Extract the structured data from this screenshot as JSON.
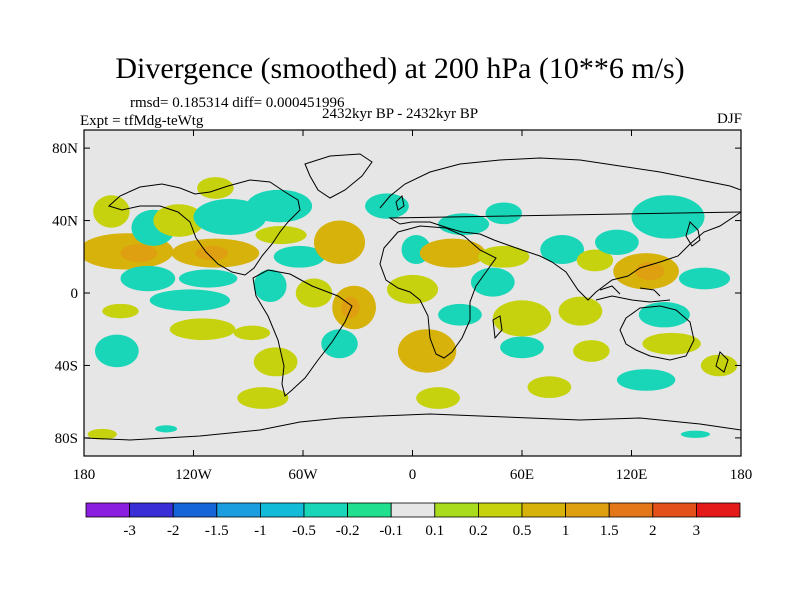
{
  "chart_data": {
    "type": "heatmap",
    "title": "Divergence (smoothed) at 200 hPa (10**6 m/s)",
    "stats_text": "rmsd= 0.185314 diff= 0.000451996",
    "experiment_label": "Expt = tfMdg-teWtg",
    "period_label": "2432kyr BP - 2432kyr BP",
    "season_label": "DJF",
    "xlim": [
      -180,
      180
    ],
    "ylim": [
      -90,
      90
    ],
    "x_ticks": [
      {
        "value": -180,
        "label": "180"
      },
      {
        "value": -120,
        "label": "120W"
      },
      {
        "value": -60,
        "label": "60W"
      },
      {
        "value": 0,
        "label": "0"
      },
      {
        "value": 60,
        "label": "60E"
      },
      {
        "value": 120,
        "label": "120E"
      },
      {
        "value": 180,
        "label": "180"
      }
    ],
    "y_ticks": [
      {
        "value": 80,
        "label": "80N"
      },
      {
        "value": 40,
        "label": "40N"
      },
      {
        "value": 0,
        "label": "0"
      },
      {
        "value": -40,
        "label": "40S"
      },
      {
        "value": -80,
        "label": "80S"
      }
    ],
    "colorbar": {
      "colors": [
        "#8a1fe0",
        "#3a2fd6",
        "#1565d8",
        "#1a9ee0",
        "#12bcd8",
        "#1ad6b8",
        "#20e090",
        "#e6e6e6",
        "#a8dc1c",
        "#c6d20e",
        "#d6b20a",
        "#dea010",
        "#e47818",
        "#e4501a",
        "#e41a1a"
      ],
      "labels": [
        "-3",
        "-2",
        "-1.5",
        "-1",
        "-0.5",
        "-0.2",
        "-0.1",
        "0.1",
        "0.2",
        "0.5",
        "1",
        "1.5",
        "2",
        "3"
      ]
    },
    "regions": [
      {
        "lon": -165,
        "lat": 45,
        "rlon": 10,
        "rlat": 9,
        "value": 0.3
      },
      {
        "lon": -157,
        "lat": 23,
        "rlon": 26,
        "rlat": 10,
        "value": 0.6
      },
      {
        "lon": -150,
        "lat": 22,
        "rlon": 10,
        "rlat": 5,
        "value": 1.1
      },
      {
        "lon": -160,
        "lat": -10,
        "rlon": 10,
        "rlat": 4,
        "value": 0.3
      },
      {
        "lon": -162,
        "lat": -32,
        "rlon": 12,
        "rlat": 9,
        "value": -0.3
      },
      {
        "lon": -145,
        "lat": 8,
        "rlon": 15,
        "rlat": 7,
        "value": -0.35
      },
      {
        "lon": -142,
        "lat": 36,
        "rlon": 12,
        "rlat": 10,
        "value": -0.3
      },
      {
        "lon": -128,
        "lat": 40,
        "rlon": 14,
        "rlat": 9,
        "value": 0.3
      },
      {
        "lon": -108,
        "lat": 58,
        "rlon": 10,
        "rlat": 6,
        "value": 0.3
      },
      {
        "lon": -100,
        "lat": 42,
        "rlon": 20,
        "rlat": 10,
        "value": -0.3
      },
      {
        "lon": -108,
        "lat": 22,
        "rlon": 24,
        "rlat": 8,
        "value": 0.6
      },
      {
        "lon": -110,
        "lat": 22,
        "rlon": 9,
        "rlat": 4,
        "value": 1.1
      },
      {
        "lon": -112,
        "lat": 8,
        "rlon": 16,
        "rlat": 5,
        "value": -0.3
      },
      {
        "lon": -122,
        "lat": -4,
        "rlon": 22,
        "rlat": 6,
        "value": -0.3
      },
      {
        "lon": -115,
        "lat": -20,
        "rlon": 18,
        "rlat": 6,
        "value": 0.3
      },
      {
        "lon": -73,
        "lat": 48,
        "rlon": 18,
        "rlat": 9,
        "value": -0.35
      },
      {
        "lon": -72,
        "lat": 32,
        "rlon": 14,
        "rlat": 5,
        "value": 0.3
      },
      {
        "lon": -78,
        "lat": 4,
        "rlon": 9,
        "rlat": 9,
        "value": -0.4
      },
      {
        "lon": -88,
        "lat": -22,
        "rlon": 10,
        "rlat": 4,
        "value": 0.3
      },
      {
        "lon": -75,
        "lat": -38,
        "rlon": 12,
        "rlat": 8,
        "value": 0.3
      },
      {
        "lon": -82,
        "lat": -58,
        "rlon": 14,
        "rlat": 6,
        "value": 0.4
      },
      {
        "lon": -62,
        "lat": 20,
        "rlon": 14,
        "rlat": 6,
        "value": -0.3
      },
      {
        "lon": -54,
        "lat": 0,
        "rlon": 10,
        "rlat": 8,
        "value": 0.3
      },
      {
        "lon": -40,
        "lat": 28,
        "rlon": 14,
        "rlat": 12,
        "value": 0.6
      },
      {
        "lon": -32,
        "lat": -8,
        "rlon": 12,
        "rlat": 12,
        "value": 0.6
      },
      {
        "lon": -34,
        "lat": -8,
        "rlon": 5,
        "rlat": 6,
        "value": 1.1
      },
      {
        "lon": -40,
        "lat": -28,
        "rlon": 10,
        "rlat": 8,
        "value": -0.3
      },
      {
        "lon": -14,
        "lat": 48,
        "rlon": 12,
        "rlat": 7,
        "value": -0.3
      },
      {
        "lon": 2,
        "lat": 24,
        "rlon": 8,
        "rlat": 8,
        "value": -0.3
      },
      {
        "lon": 28,
        "lat": 38,
        "rlon": 14,
        "rlat": 6,
        "value": -0.3
      },
      {
        "lon": 22,
        "lat": 22,
        "rlon": 18,
        "rlat": 8,
        "value": 0.5
      },
      {
        "lon": 0,
        "lat": 2,
        "rlon": 14,
        "rlat": 8,
        "value": 0.3
      },
      {
        "lon": 8,
        "lat": -32,
        "rlon": 16,
        "rlat": 12,
        "value": 0.5
      },
      {
        "lon": 26,
        "lat": -12,
        "rlon": 12,
        "rlat": 6,
        "value": -0.3
      },
      {
        "lon": 14,
        "lat": -58,
        "rlon": 12,
        "rlat": 6,
        "value": 0.3
      },
      {
        "lon": 50,
        "lat": 44,
        "rlon": 10,
        "rlat": 6,
        "value": -0.3
      },
      {
        "lon": 50,
        "lat": 20,
        "rlon": 14,
        "rlat": 6,
        "value": 0.4
      },
      {
        "lon": 44,
        "lat": 6,
        "rlon": 12,
        "rlat": 8,
        "value": -0.3
      },
      {
        "lon": 60,
        "lat": -14,
        "rlon": 16,
        "rlat": 10,
        "value": 0.4
      },
      {
        "lon": 60,
        "lat": -30,
        "rlon": 12,
        "rlat": 6,
        "value": -0.3
      },
      {
        "lon": 75,
        "lat": -52,
        "rlon": 12,
        "rlat": 6,
        "value": 0.4
      },
      {
        "lon": 82,
        "lat": 24,
        "rlon": 12,
        "rlat": 8,
        "value": -0.3
      },
      {
        "lon": 92,
        "lat": -10,
        "rlon": 12,
        "rlat": 8,
        "value": 0.3
      },
      {
        "lon": 100,
        "lat": 18,
        "rlon": 10,
        "rlat": 6,
        "value": 0.3
      },
      {
        "lon": 98,
        "lat": -32,
        "rlon": 10,
        "rlat": 6,
        "value": 0.3
      },
      {
        "lon": 128,
        "lat": 12,
        "rlon": 18,
        "rlat": 10,
        "value": 0.6
      },
      {
        "lon": 130,
        "lat": 12,
        "rlon": 8,
        "rlat": 5,
        "value": 1.2
      },
      {
        "lon": 140,
        "lat": 42,
        "rlon": 20,
        "rlat": 12,
        "value": -0.3
      },
      {
        "lon": 112,
        "lat": 28,
        "rlon": 12,
        "rlat": 7,
        "value": -0.3
      },
      {
        "lon": 138,
        "lat": -12,
        "rlon": 14,
        "rlat": 7,
        "value": -0.3
      },
      {
        "lon": 142,
        "lat": -28,
        "rlon": 16,
        "rlat": 6,
        "value": 0.3
      },
      {
        "lon": 128,
        "lat": -48,
        "rlon": 16,
        "rlat": 6,
        "value": -0.3
      },
      {
        "lon": 160,
        "lat": 8,
        "rlon": 14,
        "rlat": 6,
        "value": -0.3
      },
      {
        "lon": 168,
        "lat": -40,
        "rlon": 10,
        "rlat": 6,
        "value": 0.3
      },
      {
        "lon": 155,
        "lat": -78,
        "rlon": 8,
        "rlat": 2,
        "value": -0.3
      },
      {
        "lon": -170,
        "lat": -78,
        "rlon": 8,
        "rlat": 3,
        "value": 0.3
      },
      {
        "lon": -135,
        "lat": -75,
        "rlon": 6,
        "rlat": 2,
        "value": -0.3
      }
    ]
  }
}
